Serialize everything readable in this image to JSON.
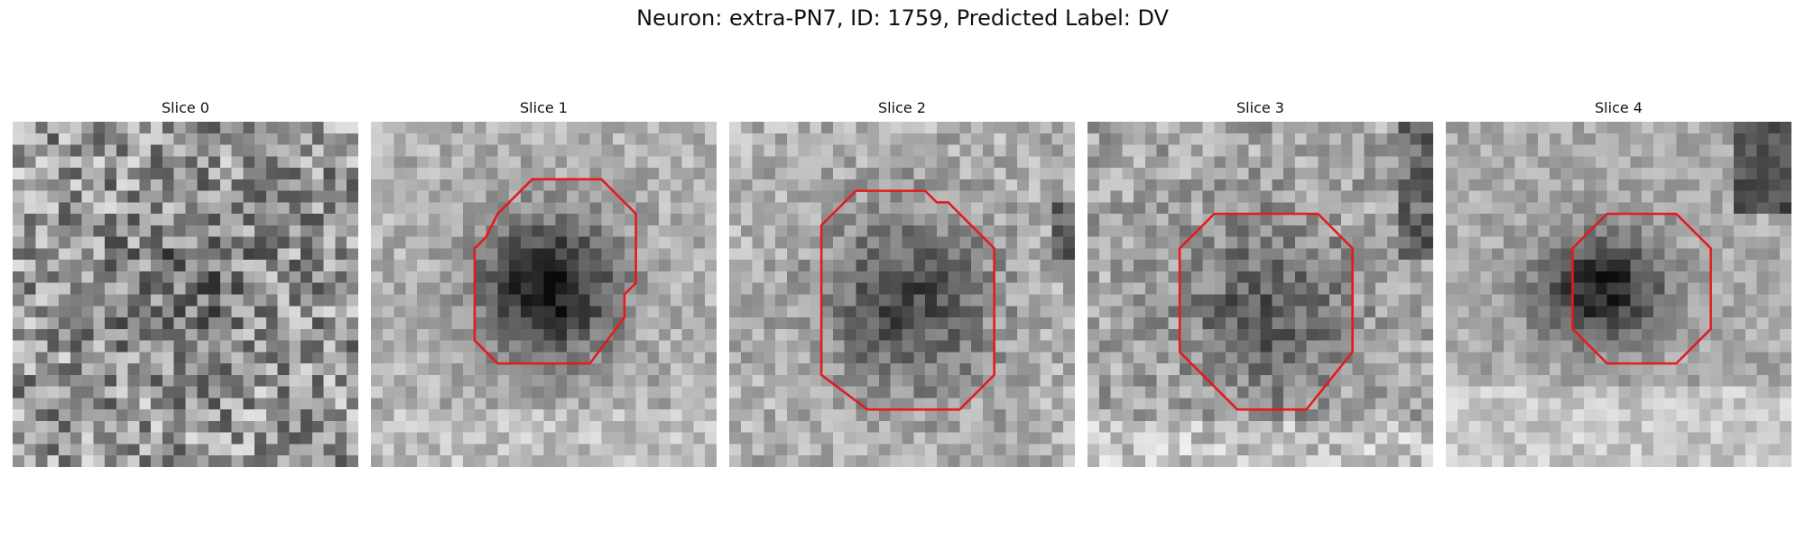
{
  "figure": {
    "title": "Neuron: extra-PN7, ID: 1759, Predicted Label: DV",
    "contour_color": "#e41a1c",
    "slices": [
      {
        "title": "Slice 0",
        "contour": []
      },
      {
        "title": "Slice 1",
        "contour": [
          [
            14,
            5
          ],
          [
            20,
            5
          ],
          [
            23,
            8
          ],
          [
            23,
            14
          ],
          [
            22,
            15
          ],
          [
            22,
            17
          ],
          [
            19,
            21
          ],
          [
            11,
            21
          ],
          [
            9,
            19
          ],
          [
            9,
            11
          ],
          [
            10,
            10
          ],
          [
            11,
            8
          ]
        ]
      },
      {
        "title": "Slice 2",
        "contour": [
          [
            11,
            6
          ],
          [
            17,
            6
          ],
          [
            18,
            7
          ],
          [
            19,
            7
          ],
          [
            23,
            11
          ],
          [
            23,
            22
          ],
          [
            20,
            25
          ],
          [
            12,
            25
          ],
          [
            8,
            22
          ],
          [
            8,
            9
          ]
        ]
      },
      {
        "title": "Slice 3",
        "contour": [
          [
            14,
            8
          ],
          [
            20,
            8
          ],
          [
            23,
            11
          ],
          [
            23,
            20
          ],
          [
            19,
            25
          ],
          [
            13,
            25
          ],
          [
            9,
            21
          ],
          [
            8,
            20
          ],
          [
            8,
            11
          ],
          [
            11,
            8
          ]
        ]
      },
      {
        "title": "Slice 4",
        "contour": [
          [
            14,
            8
          ],
          [
            20,
            8
          ],
          [
            23,
            11
          ],
          [
            23,
            18
          ],
          [
            20,
            21
          ],
          [
            14,
            21
          ],
          [
            11,
            18
          ],
          [
            11,
            11
          ]
        ]
      }
    ]
  }
}
